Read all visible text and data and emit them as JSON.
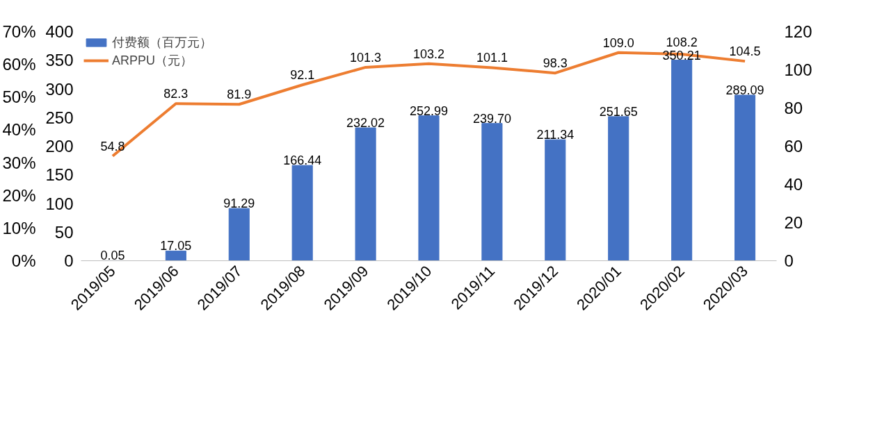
{
  "chart_data": {
    "type": "bar",
    "categories": [
      "2019/05",
      "2019/06",
      "2019/07",
      "2019/08",
      "2019/09",
      "2019/10",
      "2019/11",
      "2019/12",
      "2020/01",
      "2020/02",
      "2020/03"
    ],
    "series": [
      {
        "name": "付费额（百万元）",
        "color": "#4472c4",
        "values": [
          0.05,
          17.05,
          91.29,
          166.44,
          232.02,
          252.99,
          239.7,
          211.34,
          251.65,
          350.21,
          289.09
        ],
        "value_labels": [
          "0.05",
          "17.05",
          "91.29",
          "166.44",
          "232.02",
          "252.99",
          "239.70",
          "211.34",
          "251.65",
          "350.21",
          "289.09"
        ]
      },
      {
        "name": "ARPPU（元）",
        "type": "line",
        "axis": "y2",
        "color": "#ed7d31",
        "values": [
          54.8,
          82.3,
          81.9,
          92.1,
          101.3,
          103.2,
          101.1,
          98.3,
          109.0,
          108.2,
          104.5
        ],
        "value_labels": [
          "54.8",
          "82.3",
          "81.9",
          "92.1",
          "101.3",
          "103.2",
          "101.1",
          "98.3",
          "109.0",
          "108.2",
          "104.5"
        ]
      }
    ],
    "ylim": [
      0,
      400
    ],
    "yticks": [
      0,
      50,
      100,
      150,
      200,
      250,
      300,
      350,
      400
    ],
    "y2lim": [
      0,
      120
    ],
    "y2ticks": [
      0,
      20,
      40,
      60,
      80,
      100,
      120
    ],
    "y3lim": [
      0,
      70
    ],
    "y3ticks": [
      {
        "value": 0,
        "label": "0%"
      },
      {
        "value": 10,
        "label": "10%"
      },
      {
        "value": 20,
        "label": "20%"
      },
      {
        "value": 30,
        "label": "30%"
      },
      {
        "value": 40,
        "label": "40%"
      },
      {
        "value": 50,
        "label": "50%"
      },
      {
        "value": 60,
        "label": "60%"
      },
      {
        "value": 70,
        "label": "70%"
      }
    ],
    "legend": "top left"
  }
}
